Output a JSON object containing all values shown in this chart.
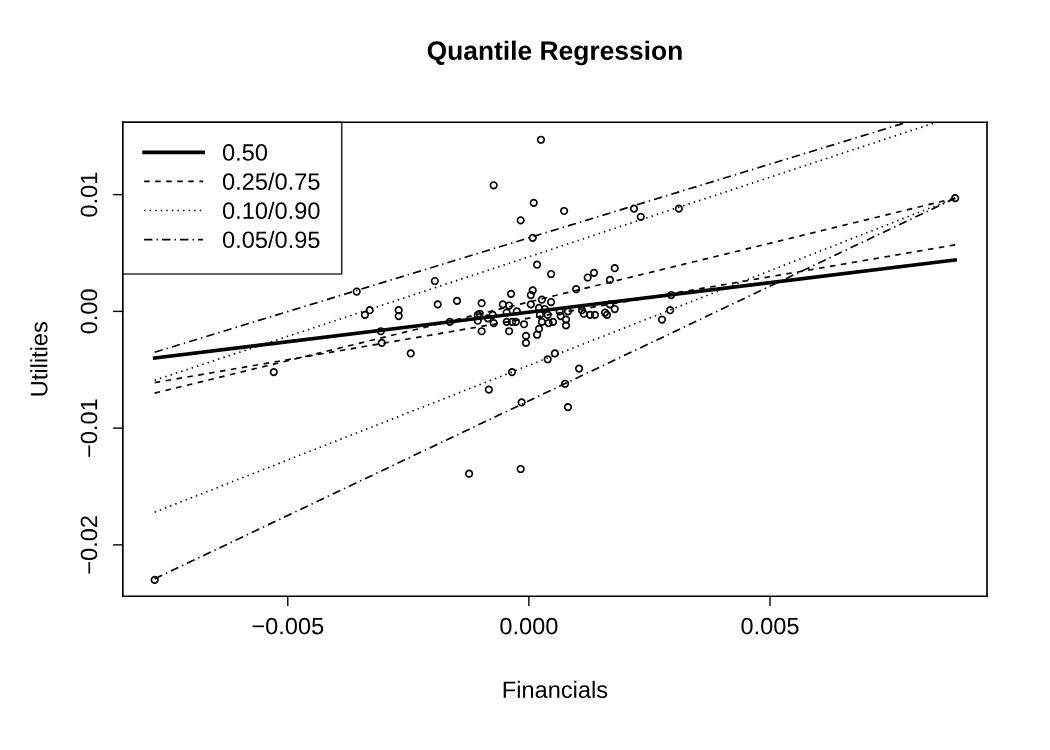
{
  "chart_data": {
    "type": "scatter",
    "title": "Quantile Regression",
    "xlabel": "Financials",
    "ylabel": "Utilities",
    "xlim": [
      -0.00842,
      0.0095
    ],
    "ylim": [
      -0.0244,
      0.0162
    ],
    "xticks": [
      {
        "value": -0.005,
        "label": "−0.005"
      },
      {
        "value": 0,
        "label": "0.000"
      },
      {
        "value": 0.005,
        "label": "0.005"
      }
    ],
    "yticks": [
      {
        "value": -0.02,
        "label": "−0.02"
      },
      {
        "value": -0.01,
        "label": "−0.01"
      },
      {
        "value": 0,
        "label": "0.00"
      },
      {
        "value": 0.01,
        "label": "0.01"
      }
    ],
    "grid": false,
    "legend": "top left",
    "series": [
      {
        "color": "#000000",
        "marker": "circle",
        "x": [
          -0.00776,
          -0.00529,
          -0.00357,
          -0.0034,
          -0.0033,
          -0.00307,
          -0.00305,
          -0.0027,
          -0.0027,
          -0.00245,
          -0.00195,
          -0.00189,
          -0.00164,
          -0.00149,
          -0.00124,
          -0.00106,
          -0.00102,
          -0.00106,
          -0.00098,
          -0.00098,
          -0.00085,
          -0.00083,
          -0.00075,
          -0.00073,
          -0.00073,
          -0.00054,
          -0.00046,
          -0.00046,
          -0.00041,
          -0.00041,
          -0.00037,
          -0.00035,
          -0.00035,
          -0.00027,
          -0.00025,
          -0.00017,
          -0.00017,
          -0.00015,
          -0.0001,
          -6e-05,
          -6e-05,
          4e-05,
          4e-05,
          8e-05,
          8e-05,
          0.0001,
          0.00017,
          0.00017,
          0.00021,
          0.00021,
          0.00023,
          0.00025,
          0.00027,
          0.00027,
          0.00033,
          0.00039,
          0.00039,
          0.00041,
          0.00046,
          0.00046,
          0.0005,
          0.00054,
          0.00064,
          0.00066,
          0.00073,
          0.00075,
          0.00077,
          0.00077,
          0.00081,
          0.00081,
          0.00098,
          0.00104,
          0.0011,
          0.00114,
          0.00122,
          0.00127,
          0.00135,
          0.00137,
          0.00158,
          0.00162,
          0.00168,
          0.00168,
          0.00178,
          0.00178,
          0.00218,
          0.00232,
          0.00276,
          0.00293,
          0.00295,
          0.00311,
          0.00884
        ],
        "values": [
          -0.023,
          -0.0052,
          0.0017,
          -0.0003,
          0.0001,
          -0.0017,
          -0.0027,
          0.0001,
          -0.0004,
          -0.0036,
          0.0026,
          0.0006,
          -0.0009,
          0.0009,
          -0.0139,
          -0.0003,
          -0.0002,
          -0.0008,
          0.0007,
          -0.0017,
          -0.0006,
          -0.0067,
          -0.0003,
          0.0108,
          -0.001,
          0.0006,
          -0.0001,
          -0.0009,
          0.0005,
          -0.0017,
          0.0015,
          -0.0009,
          -0.0052,
          -0.0009,
          0.0,
          0.0078,
          -0.0135,
          -0.0078,
          -0.0011,
          -0.0021,
          -0.0027,
          0.0014,
          0.0006,
          0.0018,
          0.0063,
          0.0093,
          0.004,
          -0.002,
          0.0003,
          -0.0015,
          -0.0003,
          0.0147,
          0.001,
          -0.0009,
          0.0002,
          -0.0003,
          -0.0041,
          -0.001,
          0.0032,
          0.0008,
          -0.0009,
          -0.0036,
          0.0,
          -0.0004,
          0.0086,
          -0.0062,
          -0.0007,
          -0.0012,
          0.0,
          -0.0082,
          0.0019,
          -0.0049,
          0.0001,
          -0.0002,
          0.0029,
          -0.0003,
          0.0033,
          -0.0003,
          -0.0001,
          -0.0003,
          0.0027,
          0.0006,
          0.0037,
          0.0002,
          0.0088,
          0.0081,
          -0.0007,
          0.0001,
          0.0014,
          0.0088,
          0.0097
        ]
      },
      {
        "type": "line",
        "name": "0.50",
        "color": "#000000",
        "line_style": "solid",
        "x": [
          -0.00776,
          0.00884
        ],
        "values": [
          -0.004,
          0.0044
        ]
      },
      {
        "type": "line",
        "name": "0.25/0.75",
        "color": "#000000",
        "line_style": "dashed",
        "x": [
          -0.00776,
          0.00884
        ],
        "values": [
          -0.0061,
          0.0057
        ]
      },
      {
        "type": "line",
        "color": "#000000",
        "line_style": "dashed",
        "x": [
          -0.00776,
          0.00884
        ],
        "values": [
          -0.007,
          0.0097
        ]
      },
      {
        "type": "line",
        "name": "0.10/0.90",
        "color": "#000000",
        "line_style": "dotted",
        "x": [
          -0.00776,
          0.00838
        ],
        "values": [
          -0.0059,
          0.0161
        ]
      },
      {
        "type": "line",
        "color": "#000000",
        "line_style": "dotted",
        "x": [
          -0.00776,
          0.00884
        ],
        "values": [
          -0.0172,
          0.0097
        ]
      },
      {
        "type": "line",
        "name": "0.05/0.95",
        "color": "#000000",
        "line_style": "dashdot",
        "x": [
          -0.00776,
          0.00776
        ],
        "values": [
          -0.0035,
          0.0161
        ]
      },
      {
        "type": "line",
        "color": "#000000",
        "line_style": "dashdot",
        "x": [
          -0.00776,
          0.00884
        ],
        "values": [
          -0.0229,
          0.0097
        ]
      }
    ]
  }
}
